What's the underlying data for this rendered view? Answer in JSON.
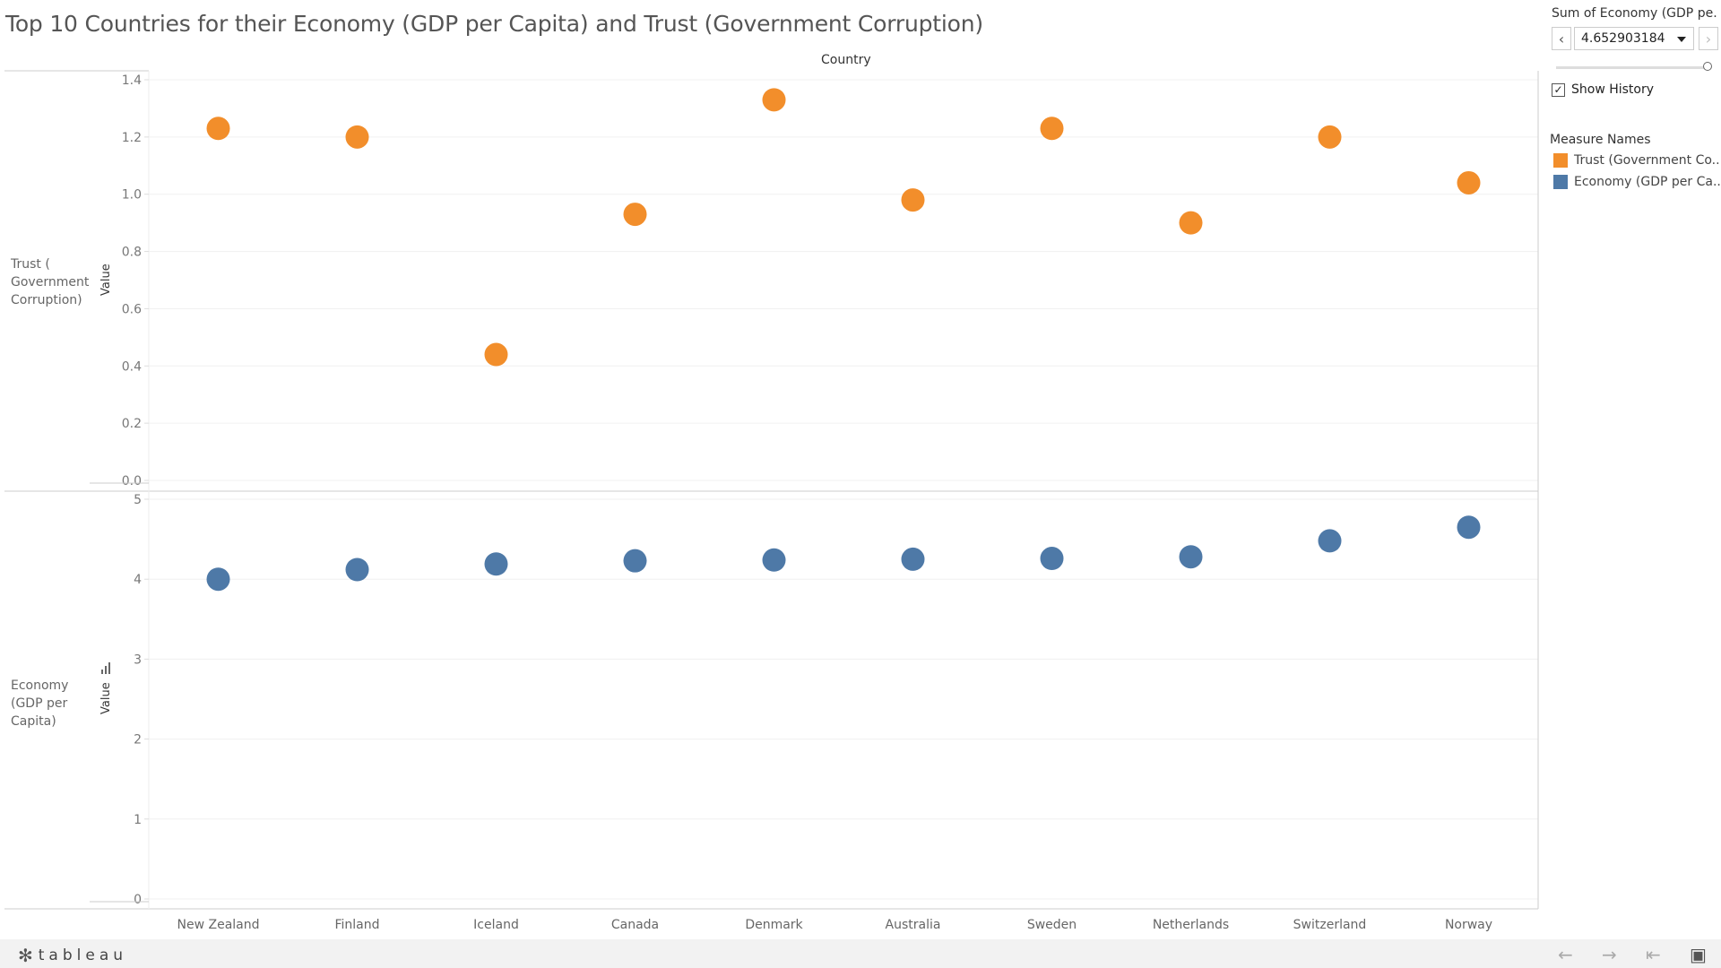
{
  "title": "Top 10 Countries for their Economy (GDP per Capita) and Trust (Government Corruption)",
  "column_header": "Country",
  "rows": {
    "trust_label": "Trust (\nGovernment\nCorruption)",
    "economy_label": "Economy\n(GDP per\nCapita)",
    "value_axis_label": "Value"
  },
  "filter": {
    "title": "Sum of Economy (GDP pe...",
    "selected_value": "4.652903184",
    "prev_icon": "chevron-left-icon",
    "next_icon": "chevron-right-icon"
  },
  "show_history": {
    "label": "Show History",
    "checked": true
  },
  "legend": {
    "title": "Measure Names",
    "items": [
      {
        "label": "Trust (Government Co...",
        "color": "#f28e2b"
      },
      {
        "label": "Economy (GDP per Ca...",
        "color": "#4e79a7"
      }
    ]
  },
  "footer": {
    "logo_text": "tableau"
  },
  "chart_data": {
    "type": "scatter",
    "title": "Top 10 Countries for their Economy (GDP per Capita) and Trust (Government Corruption)",
    "xlabel": "Country",
    "categories": [
      "New Zealand",
      "Finland",
      "Iceland",
      "Canada",
      "Denmark",
      "Australia",
      "Sweden",
      "Netherlands",
      "Switzerland",
      "Norway"
    ],
    "series": [
      {
        "name": "Trust (Government Corruption)",
        "color": "#f28e2b",
        "values": [
          1.23,
          1.2,
          0.44,
          0.93,
          1.33,
          0.98,
          1.23,
          0.9,
          1.2,
          1.04
        ],
        "ylim": [
          0,
          1.4
        ],
        "ticks": [
          "0.0",
          "0.2",
          "0.4",
          "0.6",
          "0.8",
          "1.0",
          "1.2",
          "1.4"
        ]
      },
      {
        "name": "Economy (GDP per Capita)",
        "color": "#4e79a7",
        "values": [
          4.0,
          4.12,
          4.19,
          4.23,
          4.24,
          4.25,
          4.26,
          4.28,
          4.48,
          4.65
        ],
        "ylim": [
          0,
          5
        ],
        "ticks": [
          "0",
          "1",
          "2",
          "3",
          "4",
          "5"
        ]
      }
    ],
    "ylabel": "Value",
    "grid": true
  }
}
